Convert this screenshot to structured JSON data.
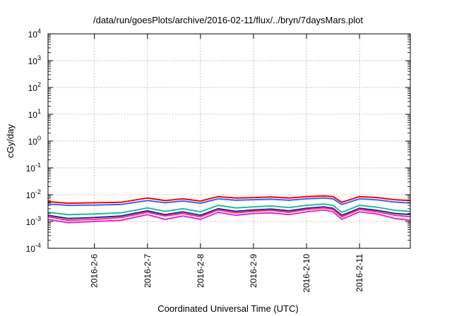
{
  "chart_data": {
    "type": "line",
    "title": "/data/run/goesPlots/archive/2016-02-11/flux/../bryn/7daysMars.plot",
    "xlabel": "Coordinated Universal Time (UTC)",
    "ylabel": "cGy/day",
    "yscale": "log",
    "ylim": [
      0.0001,
      10000
    ],
    "y_ticks": [
      {
        "value": 0.0001,
        "base": "10",
        "exp": "-4"
      },
      {
        "value": 0.001,
        "base": "10",
        "exp": "-3"
      },
      {
        "value": 0.01,
        "base": "10",
        "exp": "-2"
      },
      {
        "value": 0.1,
        "base": "10",
        "exp": "-1"
      },
      {
        "value": 1,
        "base": "10",
        "exp": "0"
      },
      {
        "value": 10,
        "base": "10",
        "exp": "1"
      },
      {
        "value": 100,
        "base": "10",
        "exp": "2"
      },
      {
        "value": 1000,
        "base": "10",
        "exp": "3"
      },
      {
        "value": 10000,
        "base": "10",
        "exp": "4"
      }
    ],
    "xlim": [
      "2016-02-05 03:00",
      "2016-02-11 23:00"
    ],
    "x_ticks": [
      {
        "value": "2016-02-06",
        "label": "2016-2-6"
      },
      {
        "value": "2016-02-07",
        "label": "2016-2-7"
      },
      {
        "value": "2016-02-08",
        "label": "2016-2-8"
      },
      {
        "value": "2016-02-09",
        "label": "2016-2-9"
      },
      {
        "value": "2016-02-10",
        "label": "2016-2-10"
      },
      {
        "value": "2016-02-11",
        "label": "2016-2-11"
      }
    ],
    "grid": true,
    "x": [
      "2016-02-05 03:00",
      "2016-02-05 12:00",
      "2016-02-06 00:00",
      "2016-02-06 12:00",
      "2016-02-07 00:00",
      "2016-02-07 08:00",
      "2016-02-07 16:00",
      "2016-02-08 00:00",
      "2016-02-08 08:00",
      "2016-02-08 16:00",
      "2016-02-09 00:00",
      "2016-02-09 08:00",
      "2016-02-09 16:00",
      "2016-02-10 00:00",
      "2016-02-10 08:00",
      "2016-02-10 12:00",
      "2016-02-10 16:00",
      "2016-02-11 00:00",
      "2016-02-11 08:00",
      "2016-02-11 16:00",
      "2016-02-11 23:00"
    ],
    "series": [
      {
        "color": "#ff0000",
        "values": [
          0.0055,
          0.0048,
          0.005,
          0.0052,
          0.0075,
          0.006,
          0.007,
          0.0058,
          0.0085,
          0.0075,
          0.0078,
          0.0082,
          0.0075,
          0.0085,
          0.009,
          0.0085,
          0.0052,
          0.0085,
          0.0078,
          0.0065,
          0.006
        ]
      },
      {
        "color": "#3366ff",
        "values": [
          0.0045,
          0.004,
          0.0041,
          0.0043,
          0.006,
          0.005,
          0.0058,
          0.0048,
          0.007,
          0.0062,
          0.0065,
          0.0068,
          0.0062,
          0.007,
          0.0075,
          0.007,
          0.0043,
          0.007,
          0.0064,
          0.0053,
          0.0049
        ]
      },
      {
        "color": "#22bb99",
        "values": [
          0.0022,
          0.0018,
          0.0019,
          0.0021,
          0.0032,
          0.0024,
          0.003,
          0.0023,
          0.004,
          0.0032,
          0.0035,
          0.0038,
          0.0033,
          0.004,
          0.0045,
          0.004,
          0.0022,
          0.004,
          0.0034,
          0.0026,
          0.0024
        ]
      },
      {
        "color": "#2222aa",
        "values": [
          0.0017,
          0.0013,
          0.0014,
          0.0016,
          0.0025,
          0.0018,
          0.0023,
          0.0017,
          0.003,
          0.0024,
          0.0027,
          0.0029,
          0.0025,
          0.0031,
          0.0035,
          0.0031,
          0.0017,
          0.0031,
          0.0026,
          0.002,
          0.0018
        ]
      },
      {
        "color": "#ff3366",
        "values": [
          0.0015,
          0.0011,
          0.0012,
          0.0014,
          0.0022,
          0.0016,
          0.002,
          0.0015,
          0.0027,
          0.0021,
          0.0024,
          0.0026,
          0.0022,
          0.0028,
          0.0032,
          0.0028,
          0.0015,
          0.0028,
          0.0023,
          0.0017,
          0.0015
        ]
      },
      {
        "color": "#ee22dd",
        "values": [
          0.0012,
          0.0009,
          0.001,
          0.0011,
          0.0018,
          0.0012,
          0.0016,
          0.0012,
          0.0022,
          0.0017,
          0.002,
          0.0021,
          0.0018,
          0.0023,
          0.0027,
          0.0023,
          0.0012,
          0.0023,
          0.0019,
          0.0013,
          0.0011
        ]
      }
    ]
  }
}
